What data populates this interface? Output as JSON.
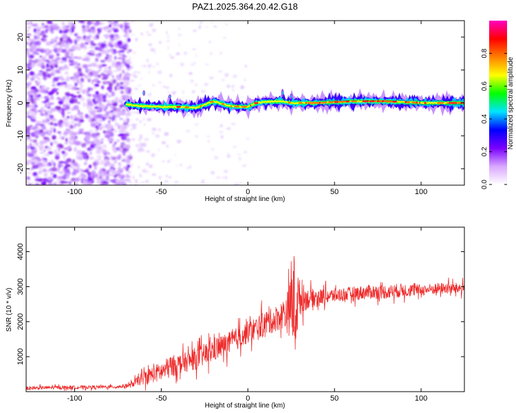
{
  "title": "PAZ1.2025.364.20.42.G18",
  "chart_data": [
    {
      "type": "heatmap",
      "xlabel": "Height of straight line (km)",
      "ylabel": "Frequency (Hz)",
      "xlim": [
        -128,
        125
      ],
      "ylim": [
        -25,
        25
      ],
      "x_ticks": [
        -100,
        -50,
        0,
        50,
        100
      ],
      "x_tick_labels": [
        "-100",
        "-50",
        "0",
        "50",
        "100"
      ],
      "y_ticks": [
        -20,
        -10,
        0,
        10,
        20
      ],
      "y_tick_labels": [
        "-20",
        "-10",
        "0",
        "10",
        "20"
      ],
      "signal_start_km": -70,
      "dominant_frequency_track": [
        {
          "x": -70,
          "y": -0.5
        },
        {
          "x": -60,
          "y": -1
        },
        {
          "x": -50,
          "y": -1.2
        },
        {
          "x": -40,
          "y": -1.2
        },
        {
          "x": -30,
          "y": -1.5
        },
        {
          "x": -20,
          "y": 0.5
        },
        {
          "x": -10,
          "y": -1
        },
        {
          "x": 0,
          "y": -1.2
        },
        {
          "x": 5,
          "y": 0
        },
        {
          "x": 10,
          "y": 0.3
        },
        {
          "x": 20,
          "y": 0.5
        },
        {
          "x": 25,
          "y": 0
        },
        {
          "x": 40,
          "y": 0
        },
        {
          "x": 60,
          "y": 0.5
        },
        {
          "x": 80,
          "y": 0.5
        },
        {
          "x": 100,
          "y": 0
        },
        {
          "x": 125,
          "y": 0
        }
      ],
      "colorbar": {
        "label": "Normalized spectral amplitude",
        "range": [
          0,
          1
        ],
        "ticks": [
          0.0,
          0.2,
          0.4,
          0.6,
          0.8
        ],
        "tick_labels": [
          "0.0",
          "0.2",
          "0.4",
          "0.6",
          "0.8"
        ],
        "colors": [
          "#ffffff",
          "#d9a6ff",
          "#7a00ff",
          "#0000ff",
          "#00e5ff",
          "#00ff00",
          "#ffff00",
          "#ff8000",
          "#ff0000",
          "#ff00c0"
        ]
      }
    },
    {
      "type": "line",
      "xlabel": "Height of straight line (km)",
      "ylabel": "SNR (10 * v/v)",
      "xlim": [
        -128,
        125
      ],
      "ylim": [
        0,
        4700
      ],
      "x_ticks": [
        -100,
        -50,
        0,
        50,
        100
      ],
      "x_tick_labels": [
        "-100",
        "-50",
        "0",
        "50",
        "100"
      ],
      "y_ticks": [
        1000,
        2000,
        3000,
        4000
      ],
      "y_tick_labels": [
        "1000",
        "2000",
        "3000",
        "4000"
      ],
      "line_color": "#ee2a2a",
      "series": [
        {
          "name": "SNR",
          "x": [
            -128,
            -110,
            -90,
            -75,
            -68,
            -62,
            -55,
            -50,
            -45,
            -40,
            -35,
            -30,
            -25,
            -20,
            -15,
            -10,
            -5,
            0,
            5,
            10,
            15,
            20,
            24,
            26,
            28,
            30,
            35,
            40,
            50,
            60,
            70,
            80,
            90,
            100,
            110,
            125
          ],
          "y": [
            100,
            120,
            130,
            140,
            180,
            350,
            500,
            560,
            700,
            800,
            850,
            950,
            1050,
            1200,
            1300,
            1400,
            1550,
            1700,
            1800,
            1950,
            2050,
            2200,
            2300,
            2600,
            2500,
            2700,
            2650,
            2700,
            2750,
            2800,
            2850,
            2850,
            2900,
            2900,
            2950,
            2950
          ],
          "amp": [
            60,
            60,
            60,
            60,
            80,
            200,
            300,
            350,
            400,
            350,
            350,
            400,
            400,
            450,
            400,
            400,
            400,
            400,
            450,
            450,
            450,
            500,
            900,
            1900,
            1500,
            600,
            350,
            300,
            250,
            250,
            250,
            250,
            250,
            200,
            200,
            200
          ]
        }
      ]
    }
  ]
}
